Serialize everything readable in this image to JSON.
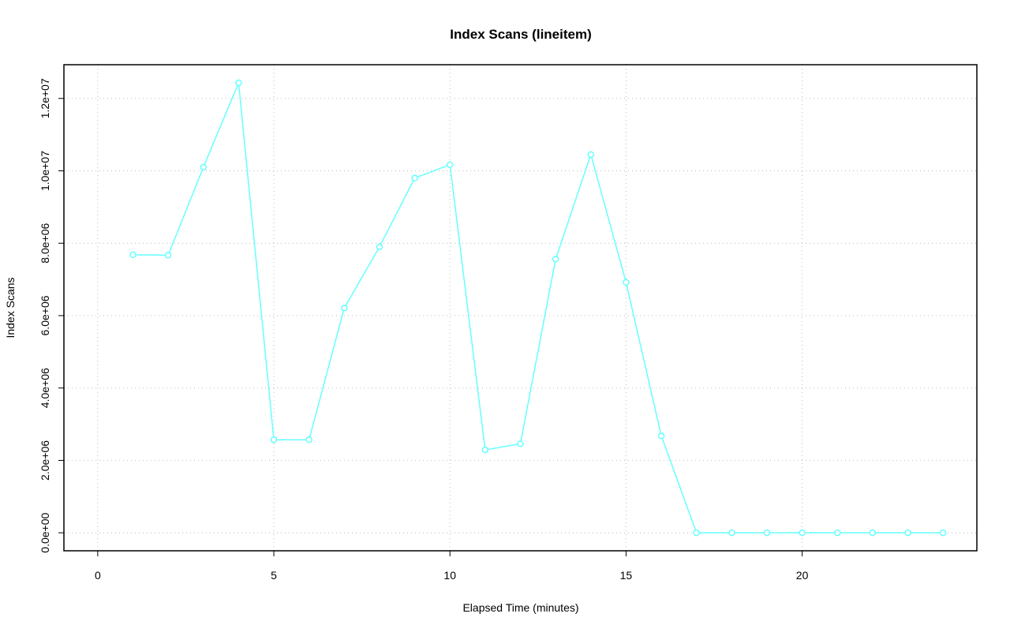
{
  "chart_data": {
    "type": "line",
    "title": "Index Scans (lineitem)",
    "x_label": "Elapsed Time (minutes)",
    "y_label": "Index Scans",
    "x": [
      1,
      2,
      3,
      4,
      5,
      6,
      7,
      8,
      9,
      10,
      11,
      12,
      13,
      14,
      15,
      16,
      17,
      18,
      19,
      20,
      21,
      22,
      23,
      24
    ],
    "series": [
      {
        "color": "#66ffff",
        "values": [
          7680000,
          7670000,
          10100000,
          12430000,
          2570000,
          2570000,
          6210000,
          7900000,
          9800000,
          10170000,
          2290000,
          2460000,
          7560000,
          10450000,
          6920000,
          2680000,
          0,
          0,
          0,
          0,
          0,
          0,
          0,
          0
        ]
      }
    ],
    "xlim": [
      -0.96,
      24.96
    ],
    "xticks": [
      0,
      5,
      10,
      15,
      20
    ],
    "ylim": [
      -497000,
      12932000
    ],
    "yticks": [
      {
        "value": 0,
        "label": "0.0e+00"
      },
      {
        "value": 2000000,
        "label": "2.0e+06"
      },
      {
        "value": 4000000,
        "label": "4.0e+06"
      },
      {
        "value": 6000000,
        "label": "6.0e+06"
      },
      {
        "value": 8000000,
        "label": "8.0e+06"
      },
      {
        "value": 10000000,
        "label": "1.0e+07"
      },
      {
        "value": 12000000,
        "label": "1.2e+07"
      }
    ],
    "grid": true
  }
}
